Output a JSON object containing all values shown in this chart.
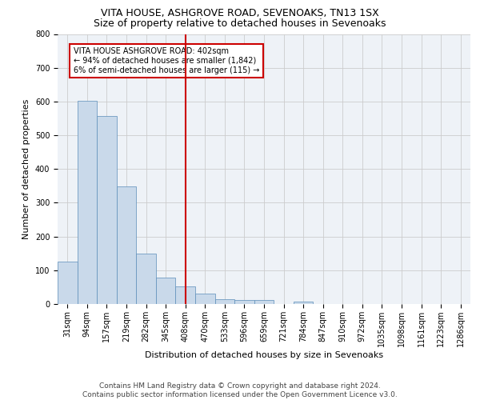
{
  "title1": "VITA HOUSE, ASHGROVE ROAD, SEVENOAKS, TN13 1SX",
  "title2": "Size of property relative to detached houses in Sevenoaks",
  "xlabel": "Distribution of detached houses by size in Sevenoaks",
  "ylabel": "Number of detached properties",
  "footer1": "Contains HM Land Registry data © Crown copyright and database right 2024.",
  "footer2": "Contains public sector information licensed under the Open Government Licence v3.0.",
  "annotation_line1": "VITA HOUSE ASHGROVE ROAD: 402sqm",
  "annotation_line2": "← 94% of detached houses are smaller (1,842)",
  "annotation_line3": "6% of semi-detached houses are larger (115) →",
  "bar_labels": [
    "31sqm",
    "94sqm",
    "157sqm",
    "219sqm",
    "282sqm",
    "345sqm",
    "408sqm",
    "470sqm",
    "533sqm",
    "596sqm",
    "659sqm",
    "721sqm",
    "784sqm",
    "847sqm",
    "910sqm",
    "972sqm",
    "1035sqm",
    "1098sqm",
    "1161sqm",
    "1223sqm",
    "1286sqm"
  ],
  "bar_values": [
    125,
    602,
    558,
    348,
    150,
    78,
    52,
    30,
    15,
    13,
    12,
    0,
    7,
    0,
    0,
    0,
    0,
    0,
    0,
    0,
    0
  ],
  "bar_color": "#c9d9ea",
  "bar_edge_color": "#5b8db8",
  "property_line_x": 6,
  "property_line_color": "#cc0000",
  "ylim": [
    0,
    800
  ],
  "yticks": [
    0,
    100,
    200,
    300,
    400,
    500,
    600,
    700,
    800
  ],
  "grid_color": "#cccccc",
  "bg_color": "#eef2f7",
  "annotation_box_color": "#cc0000",
  "title1_fontsize": 9,
  "title2_fontsize": 9,
  "axis_label_fontsize": 8,
  "tick_fontsize": 7,
  "footer_fontsize": 6.5
}
